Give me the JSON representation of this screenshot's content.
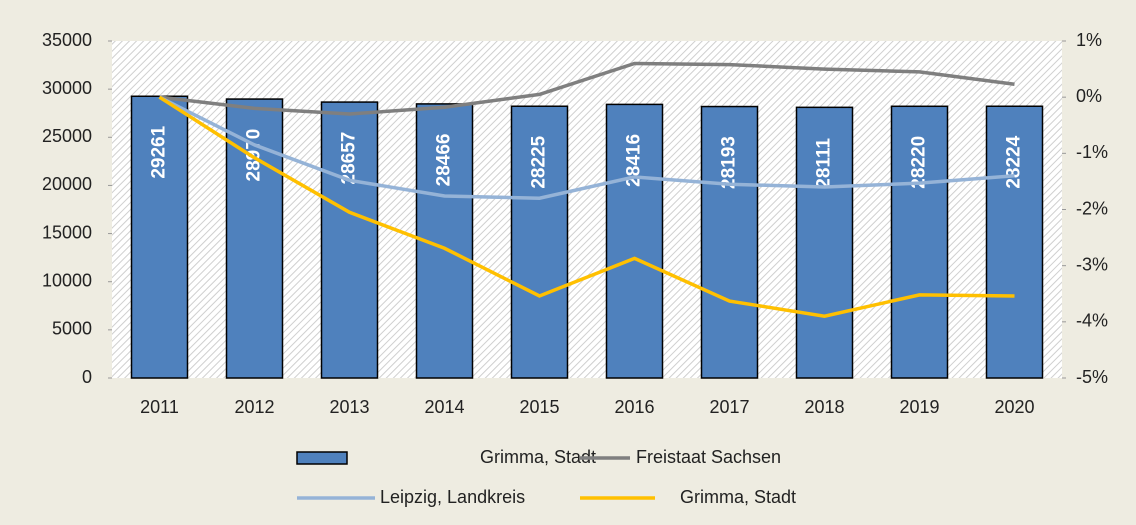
{
  "chart_data": {
    "type": "bar",
    "categories": [
      "2011",
      "2012",
      "2013",
      "2014",
      "2015",
      "2016",
      "2017",
      "2018",
      "2019",
      "2020"
    ],
    "ylim": [
      0,
      35000
    ],
    "yticks": [
      0,
      5000,
      10000,
      15000,
      20000,
      25000,
      30000,
      35000
    ],
    "y2lim": [
      -5,
      1
    ],
    "y2ticks": [
      {
        "value": -5,
        "label": "-5%"
      },
      {
        "value": -4,
        "label": "-4%"
      },
      {
        "value": -3,
        "label": "-3%"
      },
      {
        "value": -2,
        "label": "-2%"
      },
      {
        "value": -1,
        "label": "-1%"
      },
      {
        "value": 0,
        "label": "0%"
      },
      {
        "value": 1,
        "label": "1%"
      }
    ],
    "series": [
      {
        "name": "Grimma, Stadt",
        "type": "bar",
        "color": "#4f81bd",
        "values": [
          29261,
          28970,
          28657,
          28466,
          28225,
          28416,
          28193,
          28111,
          28220,
          28224
        ]
      },
      {
        "name": "Freistaat Sachsen",
        "type": "line",
        "axis": "y2",
        "color": "#7f7f7f",
        "values": [
          0,
          -0.2,
          -0.3,
          -0.18,
          0.05,
          0.6,
          0.58,
          0.5,
          0.45,
          0.23
        ]
      },
      {
        "name": "Leipzig, Landkreis",
        "type": "line",
        "axis": "y2",
        "color": "#95b3d7",
        "values": [
          0,
          -0.85,
          -1.48,
          -1.76,
          -1.8,
          -1.42,
          -1.55,
          -1.6,
          -1.53,
          -1.4
        ]
      },
      {
        "name": "Grimma, Stadt",
        "type": "line",
        "axis": "y2",
        "color": "#ffc000",
        "values": [
          0,
          -1.08,
          -2.05,
          -2.69,
          -3.54,
          -2.87,
          -3.63,
          -3.9,
          -3.52,
          -3.54
        ]
      }
    ]
  }
}
